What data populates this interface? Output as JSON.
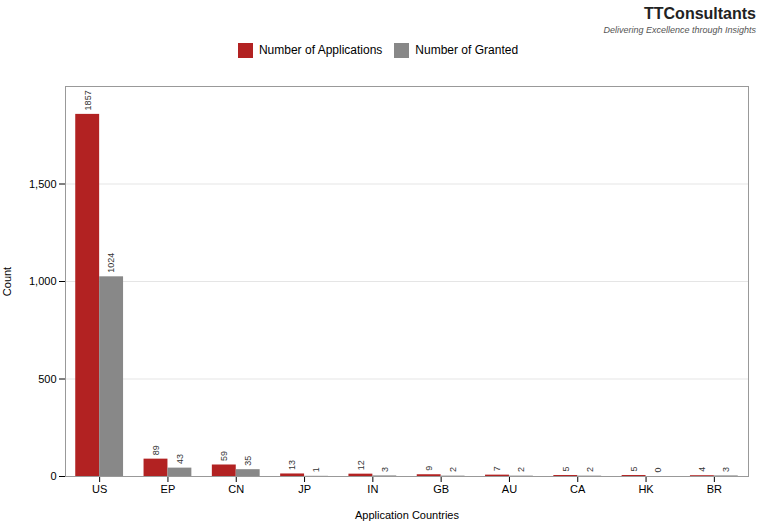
{
  "chart_data": {
    "type": "bar",
    "categories": [
      "US",
      "EP",
      "CN",
      "JP",
      "IN",
      "GB",
      "AU",
      "CA",
      "HK",
      "BR"
    ],
    "series": [
      {
        "name": "Number of Applications",
        "color": "#B22222",
        "values": [
          1857,
          89,
          59,
          13,
          12,
          9,
          7,
          5,
          5,
          4
        ]
      },
      {
        "name": "Number of Granted",
        "color": "#888888",
        "values": [
          1024,
          43,
          35,
          1,
          3,
          2,
          2,
          2,
          0,
          3
        ]
      }
    ],
    "xlabel": "Application Countries",
    "ylabel": "Count",
    "ylim": [
      0,
      2000
    ],
    "yticks": [
      0,
      500,
      1000,
      1500
    ],
    "grid": true,
    "legend": "top",
    "data_labels": true,
    "annotations": [
      "TTConsultants",
      "Delivering Excellence through Insights"
    ]
  }
}
